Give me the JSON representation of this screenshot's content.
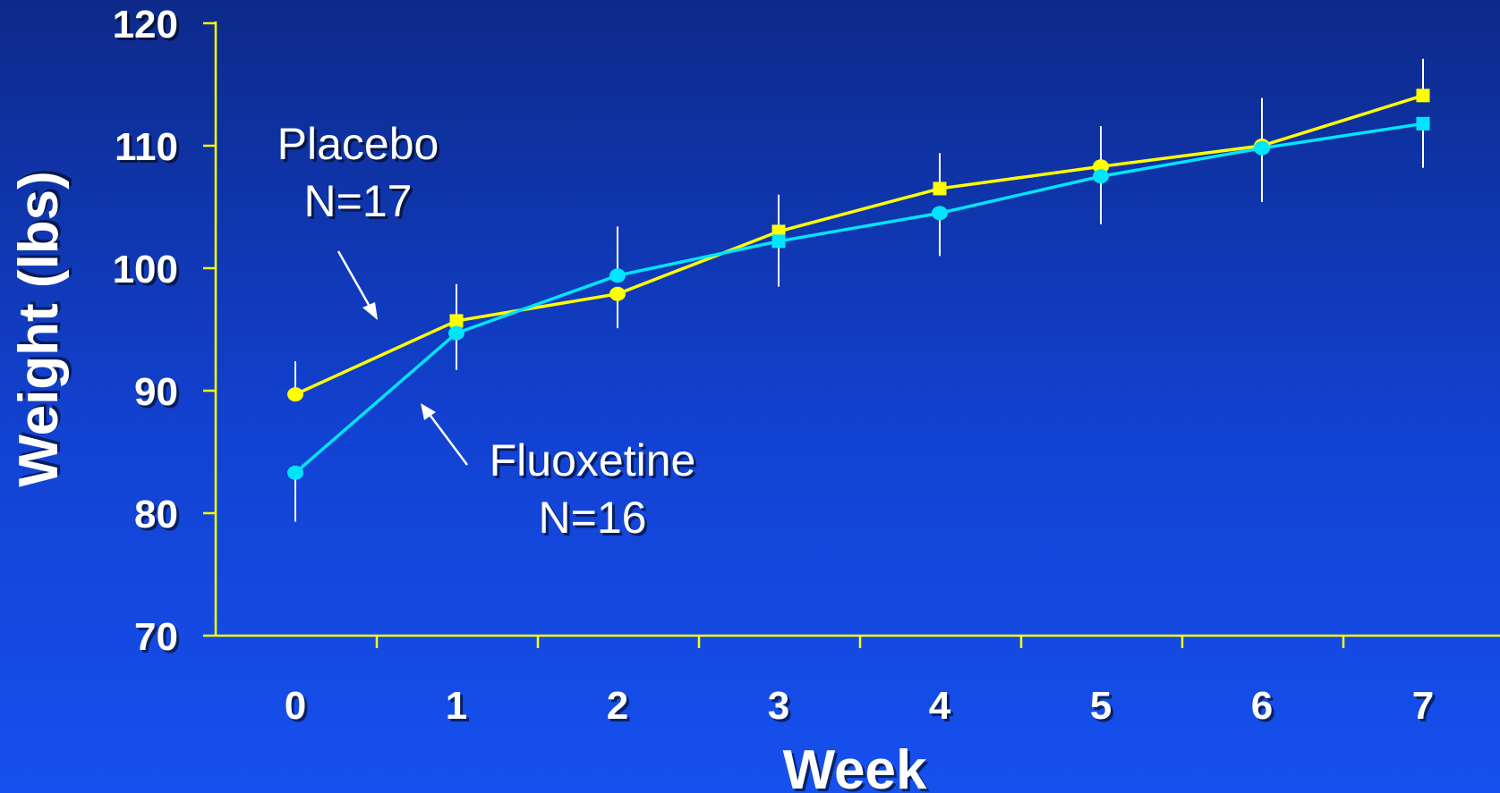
{
  "chart_data": {
    "type": "line",
    "xlabel": "Week",
    "ylabel": "Weight (lbs)",
    "x": [
      0,
      1,
      2,
      3,
      4,
      5,
      6,
      7
    ],
    "xticks": [
      "0",
      "1",
      "2",
      "3",
      "4",
      "5",
      "6",
      "7"
    ],
    "ylim": [
      70,
      120
    ],
    "yticks": [
      "70",
      "80",
      "90",
      "100",
      "110",
      "120"
    ],
    "grid": false,
    "series": [
      {
        "name": "Placebo",
        "color": "#ffff00",
        "values": [
          89.7,
          95.7,
          97.9,
          103.0,
          106.5,
          108.3,
          110.0,
          114.1
        ],
        "error": [
          2.7,
          3.0,
          2.8,
          3.0,
          2.9,
          3.3,
          3.9,
          3.0
        ],
        "markers": [
          "circle",
          "square",
          "circle",
          "square",
          "square",
          "circle",
          "circle",
          "square"
        ]
      },
      {
        "name": "Fluoxetine",
        "color": "#00e5ff",
        "values": [
          83.3,
          94.7,
          99.4,
          102.2,
          104.5,
          107.5,
          109.8,
          111.8
        ],
        "error": [
          4.0,
          3.0,
          4.0,
          3.7,
          3.5,
          3.9,
          4.4,
          3.6
        ],
        "markers": [
          "circle",
          "circle",
          "circle",
          "square",
          "circle",
          "circle",
          "circle",
          "square"
        ]
      }
    ],
    "annotations": [
      {
        "line1": "Placebo",
        "line2": "N=17",
        "target_series": "Placebo"
      },
      {
        "line1": "Fluoxetine",
        "line2": "N=16",
        "target_series": "Fluoxetine"
      }
    ],
    "axis_color": "#ffff00"
  }
}
